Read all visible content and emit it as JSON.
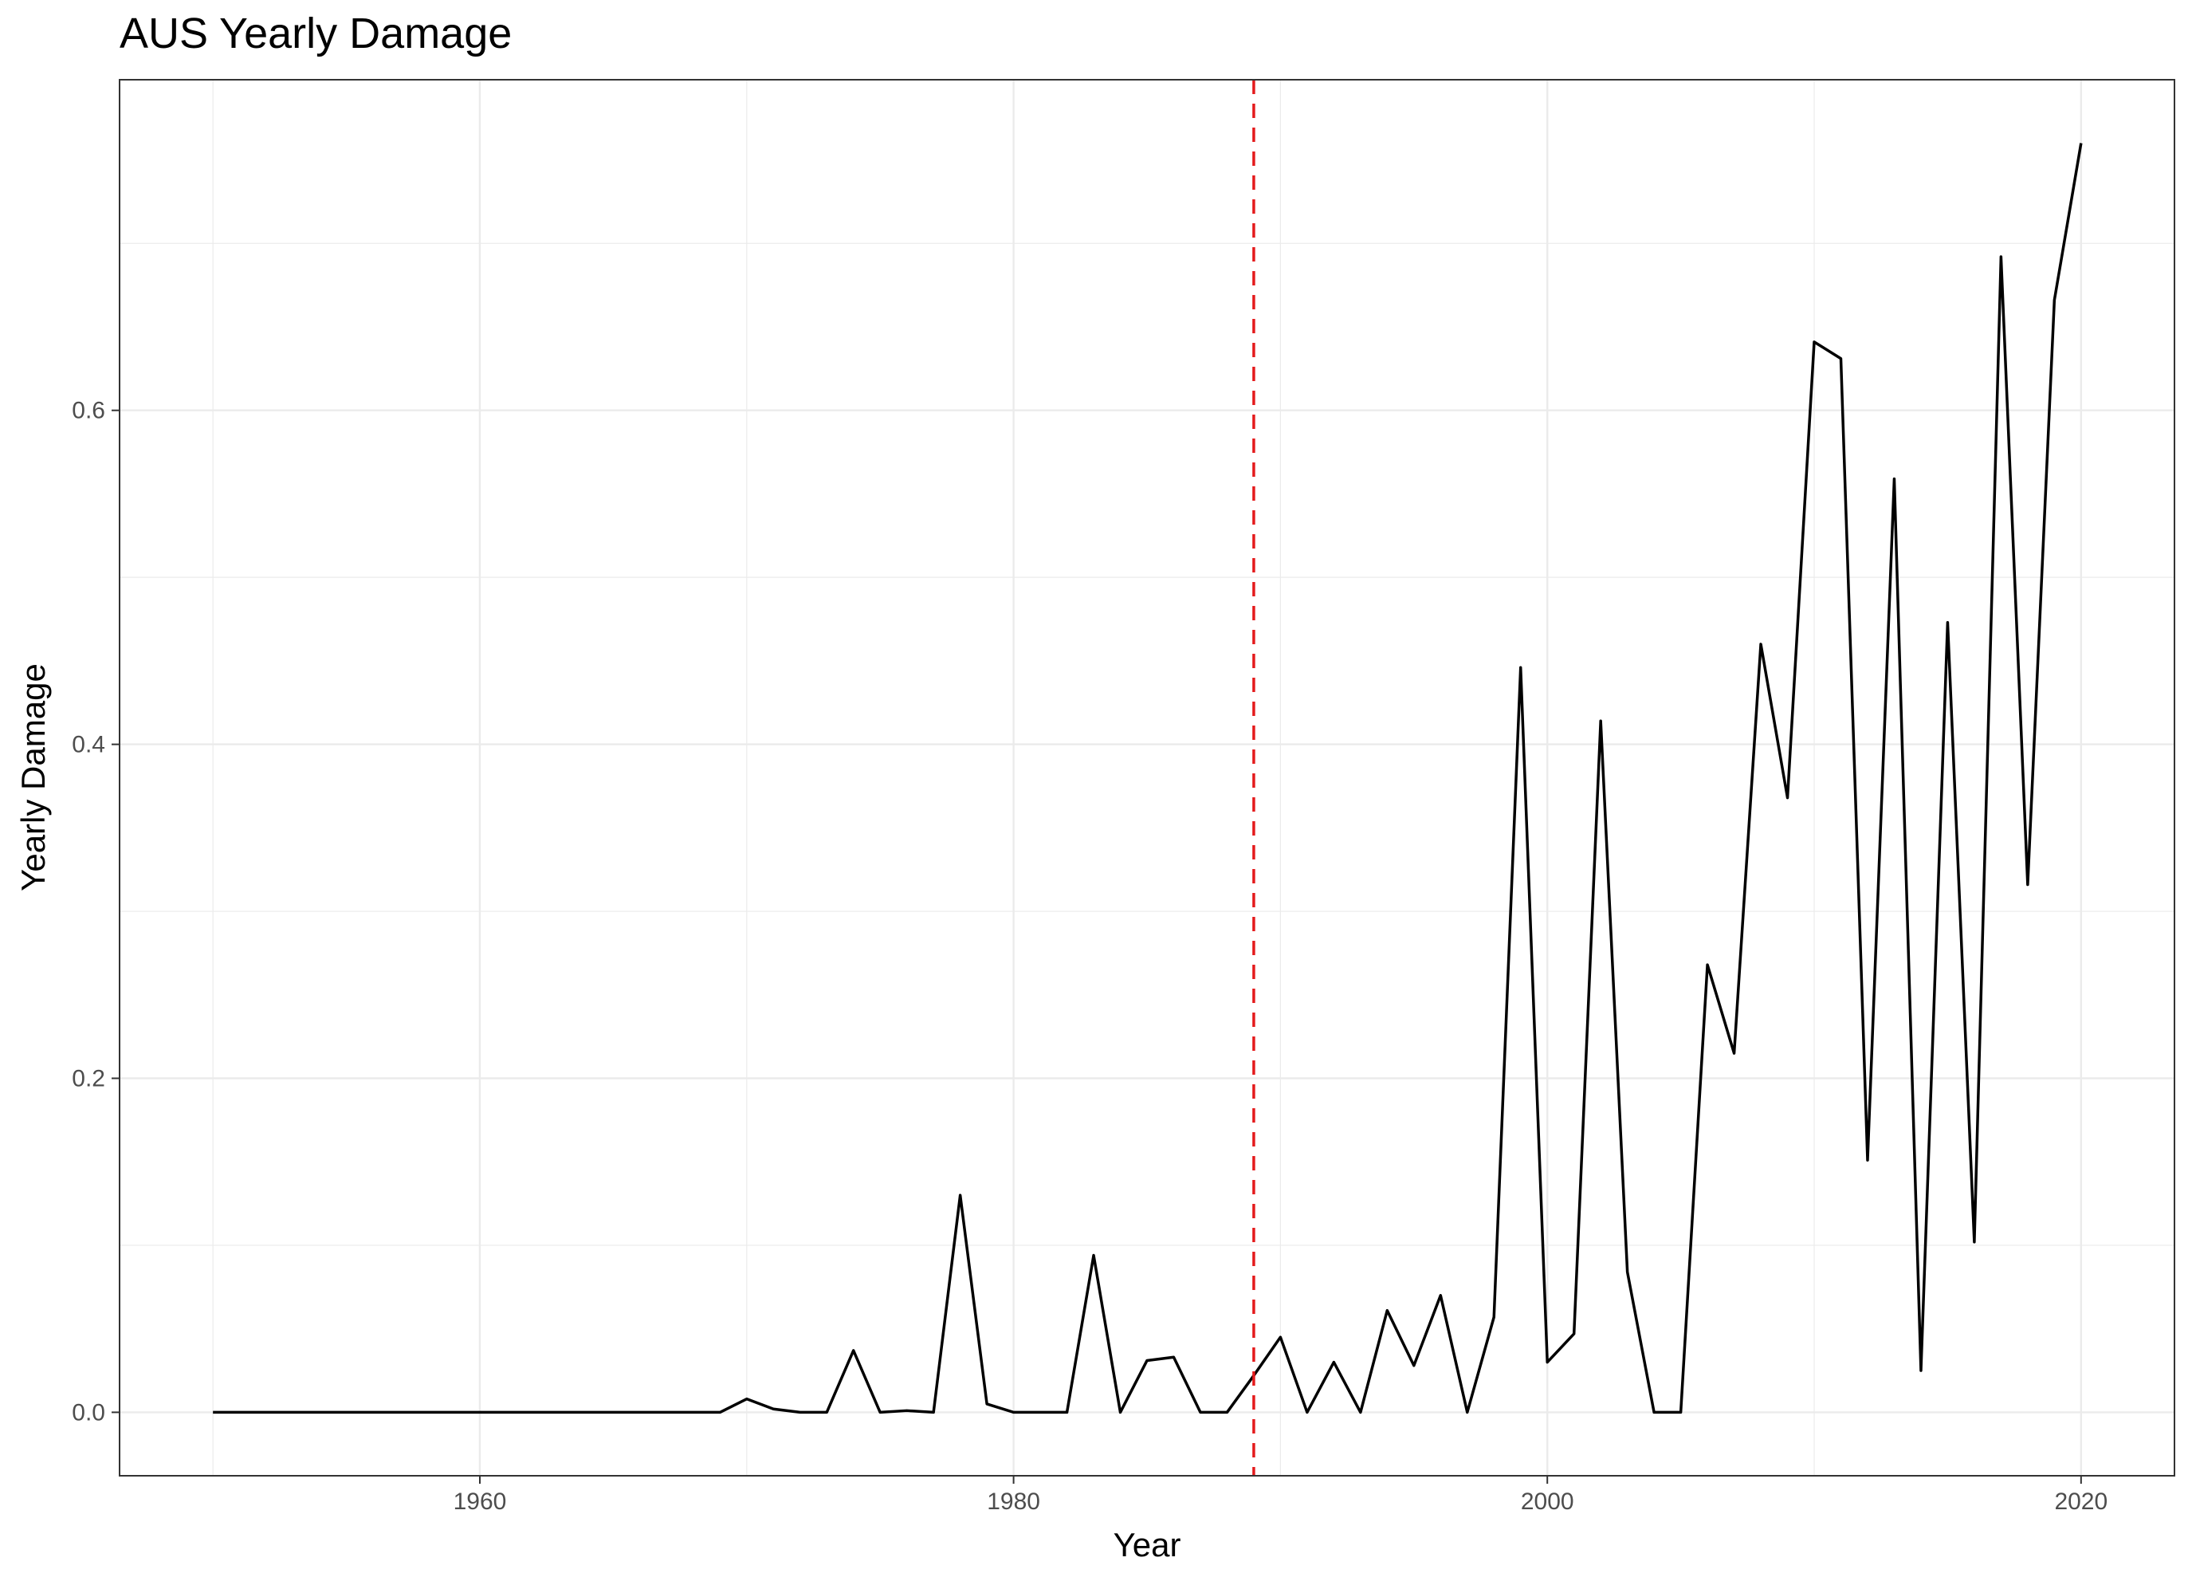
{
  "chart_data": {
    "type": "line",
    "title": "AUS Yearly Damage",
    "xlabel": "Year",
    "ylabel": "Yearly Damage",
    "xlim": [
      1946.5,
      2023.5
    ],
    "ylim": [
      -0.038,
      0.798
    ],
    "x_ticks": [
      1960,
      1980,
      2000,
      2020
    ],
    "x_tick_labels": [
      "1960",
      "1980",
      "2000",
      "2020"
    ],
    "y_ticks": [
      0.0,
      0.2,
      0.4,
      0.6
    ],
    "y_tick_labels": [
      "0.0",
      "0.2",
      "0.4",
      "0.6"
    ],
    "grid": true,
    "colors": {
      "line": "#000000",
      "reference_line": "#e41a1c",
      "grid": "#ebebeb",
      "panel_border": "#333333"
    },
    "reference_lines": [
      {
        "axis": "x",
        "value": 1989,
        "style": "dashed"
      }
    ],
    "series": [
      {
        "x": [
          1950,
          1951,
          1952,
          1953,
          1954,
          1955,
          1956,
          1957,
          1958,
          1959,
          1960,
          1961,
          1962,
          1963,
          1964,
          1965,
          1966,
          1967,
          1968,
          1969,
          1970,
          1971,
          1972,
          1973,
          1974,
          1975,
          1976,
          1977,
          1978,
          1979,
          1980,
          1981,
          1982,
          1983,
          1984,
          1985,
          1986,
          1987,
          1988,
          1989,
          1990,
          1991,
          1992,
          1993,
          1994,
          1995,
          1996,
          1997,
          1998,
          1999,
          2000,
          2001,
          2002,
          2003,
          2004,
          2005,
          2006,
          2007,
          2008,
          2009,
          2010,
          2011,
          2012,
          2013,
          2014,
          2015,
          2016,
          2017,
          2018,
          2019,
          2020
        ],
        "values": [
          0,
          0,
          0,
          0,
          0,
          0,
          0,
          0,
          0,
          0,
          0,
          0,
          0,
          0,
          0,
          0,
          0,
          0,
          0,
          0,
          0.008,
          0.002,
          0,
          0,
          0.037,
          0,
          0.001,
          0,
          0.13,
          0.005,
          0,
          0,
          0,
          0.094,
          0,
          0.031,
          0.033,
          0,
          0,
          0.022,
          0.045,
          0,
          0.03,
          0,
          0.061,
          0.028,
          0.07,
          0,
          0.057,
          0.446,
          0.03,
          0.047,
          0.414,
          0.084,
          0,
          0,
          0.268,
          0.215,
          0.46,
          0.368,
          0.641,
          0.631,
          0.151,
          0.559,
          0.025,
          0.473,
          0.102,
          0.692,
          0.316,
          0.666,
          0.76
        ]
      }
    ]
  }
}
